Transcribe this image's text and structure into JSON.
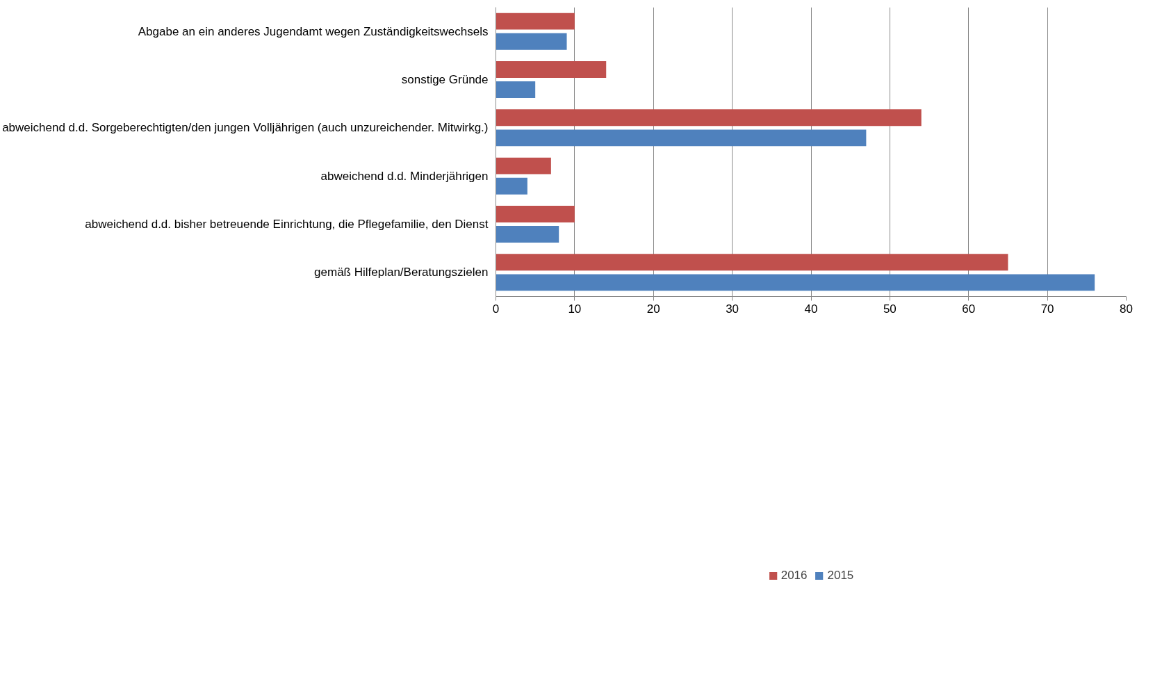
{
  "chart_data": {
    "type": "bar",
    "orientation": "horizontal",
    "categories": [
      "Abgabe an ein anderes Jugendamt wegen Zuständigkeitswechsels",
      "sonstige Gründe",
      "abweichend d.d. Sorgeberechtigten/den jungen Volljährigen (auch unzureichender. Mitwirkg.)",
      "abweichend d.d. Minderjährigen",
      "abweichend d.d. bisher betreuende Einrichtung, die Pflegefamilie, den Dienst",
      "gemäß Hilfeplan/Beratungszielen"
    ],
    "series": [
      {
        "name": "2016",
        "color": "#c0504d",
        "values": [
          10,
          14,
          54,
          7,
          10,
          65
        ]
      },
      {
        "name": "2015",
        "color": "#4f81bd",
        "values": [
          9,
          5,
          47,
          4,
          8,
          76
        ]
      }
    ],
    "xlim": [
      0,
      80
    ],
    "xticks": [
      0,
      10,
      20,
      30,
      40,
      50,
      60,
      70,
      80
    ],
    "grid": "x",
    "legend": "bottom"
  }
}
